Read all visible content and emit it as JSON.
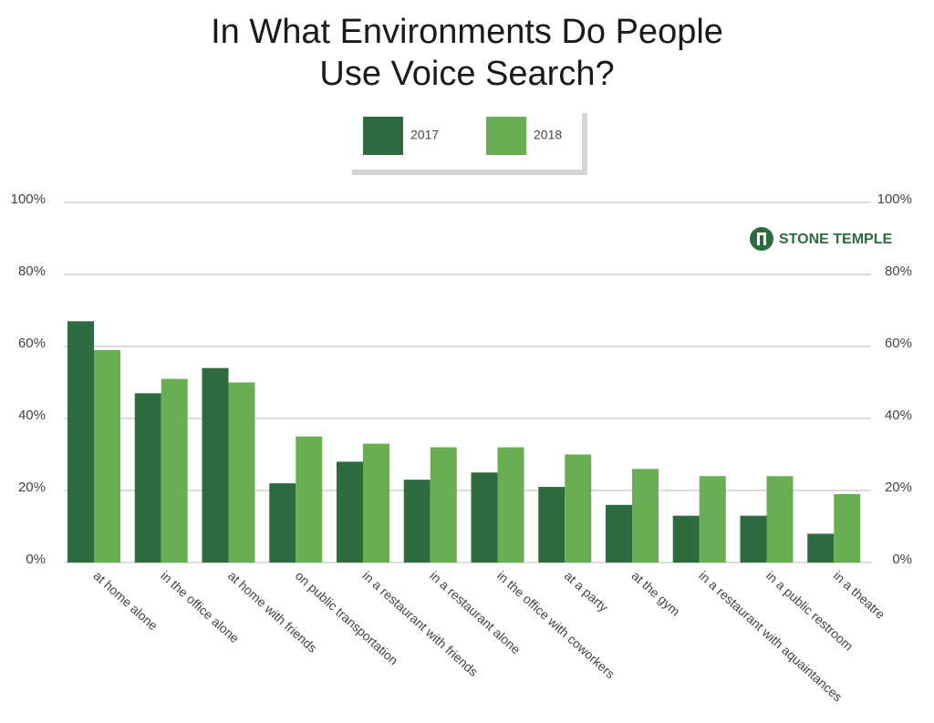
{
  "chart_data": {
    "type": "bar",
    "title": "In What Environments Do People Use Voice Search?",
    "logo": "STONE TEMPLE",
    "categories": [
      "at home alone",
      "in the office alone",
      "at home with friends",
      "on public transportation",
      "in a restaurant with friends",
      "in a restaurant alone",
      "in the office with coworkers",
      "at a party",
      "at the gym",
      "in a restaurant with aquaintances",
      "in a public restroom",
      "in a theatre"
    ],
    "series": [
      {
        "name": "2017",
        "color": "#2e6b3e",
        "values": [
          67,
          47,
          54,
          22,
          28,
          23,
          25,
          21,
          16,
          13,
          13,
          8
        ]
      },
      {
        "name": "2018",
        "color": "#6aae54",
        "values": [
          59,
          51,
          50,
          35,
          33,
          32,
          32,
          30,
          26,
          24,
          24,
          19
        ]
      }
    ],
    "ylim": [
      0,
      100
    ],
    "yticks": [
      {
        "value": 0,
        "label": "0%"
      },
      {
        "value": 20,
        "label": "20%"
      },
      {
        "value": 40,
        "label": "40%"
      },
      {
        "value": 60,
        "label": "60%"
      },
      {
        "value": 80,
        "label": "80%"
      },
      {
        "value": 100,
        "label": "100%"
      }
    ],
    "grid": true
  }
}
